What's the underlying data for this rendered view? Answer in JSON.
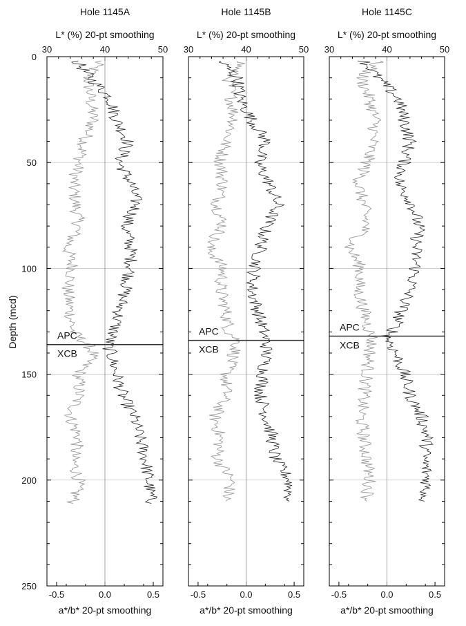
{
  "figure": {
    "ylabel": "Depth (mcd)",
    "y_ticks": [
      0,
      50,
      100,
      150,
      200,
      250
    ],
    "ylim": [
      0,
      250
    ],
    "y_inverted": true
  },
  "chart_data": [
    {
      "type": "line",
      "title": "Hole 1145A",
      "top_axis": {
        "label": "L* (%) 20-pt smoothing",
        "range": [
          30,
          50
        ],
        "ticks": [
          30,
          40,
          50
        ]
      },
      "bottom_axis": {
        "label": "a*/b* 20-pt smoothing",
        "range": [
          -0.6,
          0.6
        ],
        "ticks": [
          "-0.5",
          "0.0",
          "0.5"
        ]
      },
      "ylim": [
        0,
        250
      ],
      "boundary": {
        "depth": 136,
        "upper_label": "APC",
        "lower_label": "XCB"
      },
      "grid": true,
      "series": [
        {
          "depth": [
            2,
            10,
            20,
            30,
            40,
            50,
            60,
            70,
            80,
            90,
            100,
            110,
            120,
            130,
            136,
            140,
            150,
            160,
            170,
            180,
            190,
            200,
            211
          ],
          "value": [
            39,
            37,
            37.5,
            38,
            36.5,
            35.5,
            34.5,
            35,
            35.5,
            33.5,
            34.5,
            33.5,
            34,
            34.5,
            37,
            38,
            35.5,
            35.5,
            34,
            35.5,
            34.5,
            35.5,
            34.5
          ],
          "axis": "top",
          "color": "#999999"
        },
        {
          "depth": [
            2,
            10,
            20,
            30,
            40,
            50,
            60,
            70,
            80,
            90,
            100,
            110,
            120,
            130,
            136,
            140,
            150,
            160,
            170,
            180,
            190,
            200,
            211
          ],
          "value": [
            35,
            37.5,
            41,
            42,
            44,
            42.5,
            44.5,
            45.5,
            43.5,
            44.5,
            44.5,
            43.5,
            42.5,
            41.5,
            40.5,
            41,
            42,
            43,
            45,
            46,
            47,
            47.5,
            48
          ],
          "axis": "top",
          "color": "#222222"
        }
      ]
    },
    {
      "type": "line",
      "title": "Hole 1145B",
      "top_axis": {
        "label": "L* (%) 20-pt smoothing",
        "range": [
          30,
          50
        ],
        "ticks": [
          30,
          40,
          50
        ]
      },
      "bottom_axis": {
        "label": "a*/b* 20-pt smoothing",
        "range": [
          -0.6,
          0.6
        ],
        "ticks": [
          "-0.5",
          "0.0",
          "0.5"
        ]
      },
      "ylim": [
        0,
        250
      ],
      "boundary": {
        "depth": 134,
        "upper_label": "APC",
        "lower_label": "XCB"
      },
      "grid": true,
      "series": [
        {
          "depth": [
            2,
            10,
            20,
            30,
            40,
            50,
            60,
            70,
            80,
            90,
            100,
            110,
            120,
            130,
            134,
            140,
            150,
            160,
            170,
            180,
            190,
            200,
            210
          ],
          "value": [
            39.5,
            37,
            37.5,
            38,
            36.5,
            35.5,
            36,
            35,
            36,
            33.5,
            36,
            35.5,
            36.5,
            37,
            38.5,
            38,
            36.5,
            36.5,
            34.5,
            35.5,
            35,
            37.5,
            36.5
          ],
          "axis": "top",
          "color": "#999999"
        },
        {
          "depth": [
            2,
            10,
            20,
            30,
            40,
            50,
            60,
            70,
            80,
            90,
            100,
            110,
            120,
            130,
            134,
            140,
            150,
            160,
            170,
            180,
            190,
            200,
            210
          ],
          "value": [
            35.5,
            38.5,
            39,
            41,
            43.5,
            42,
            44,
            45.5,
            43.5,
            42.5,
            41.5,
            41,
            42,
            43,
            43.5,
            43.5,
            43,
            42.5,
            43.5,
            44.5,
            45,
            47.5,
            47.5
          ],
          "axis": "top",
          "color": "#222222"
        }
      ]
    },
    {
      "type": "line",
      "title": "Hole 1145C",
      "top_axis": {
        "label": "L* (%) 20-pt smoothing",
        "range": [
          30,
          50
        ],
        "ticks": [
          30,
          40,
          50
        ]
      },
      "bottom_axis": {
        "label": "a*/b* 20-pt smoothing",
        "range": [
          -0.6,
          0.6
        ],
        "ticks": [
          "-0.5",
          "0.0",
          "0.5"
        ]
      },
      "ylim": [
        0,
        250
      ],
      "boundary": {
        "depth": 132,
        "upper_label": "APC",
        "lower_label": "XCB"
      },
      "grid": true,
      "series": [
        {
          "depth": [
            2,
            10,
            20,
            30,
            40,
            50,
            60,
            70,
            80,
            90,
            100,
            110,
            120,
            130,
            132,
            140,
            150,
            160,
            170,
            180,
            190,
            200,
            210
          ],
          "value": [
            38.5,
            35.5,
            37,
            38,
            37.5,
            36.5,
            35,
            36,
            36.5,
            33.5,
            35.5,
            35,
            36,
            37,
            37.5,
            37,
            36.5,
            36,
            35.5,
            36,
            36.5,
            37,
            36.5
          ],
          "axis": "top",
          "color": "#999999"
        },
        {
          "depth": [
            2,
            10,
            20,
            30,
            40,
            50,
            60,
            70,
            80,
            90,
            100,
            110,
            120,
            130,
            132,
            140,
            150,
            160,
            170,
            180,
            190,
            200,
            210
          ],
          "value": [
            36,
            38.5,
            42,
            43,
            44,
            43,
            42,
            44.5,
            45.5,
            45,
            45,
            44,
            42.5,
            41,
            40,
            41.5,
            43,
            44,
            46,
            47,
            46.5,
            47,
            46.5
          ],
          "axis": "top",
          "color": "#222222"
        }
      ]
    }
  ]
}
